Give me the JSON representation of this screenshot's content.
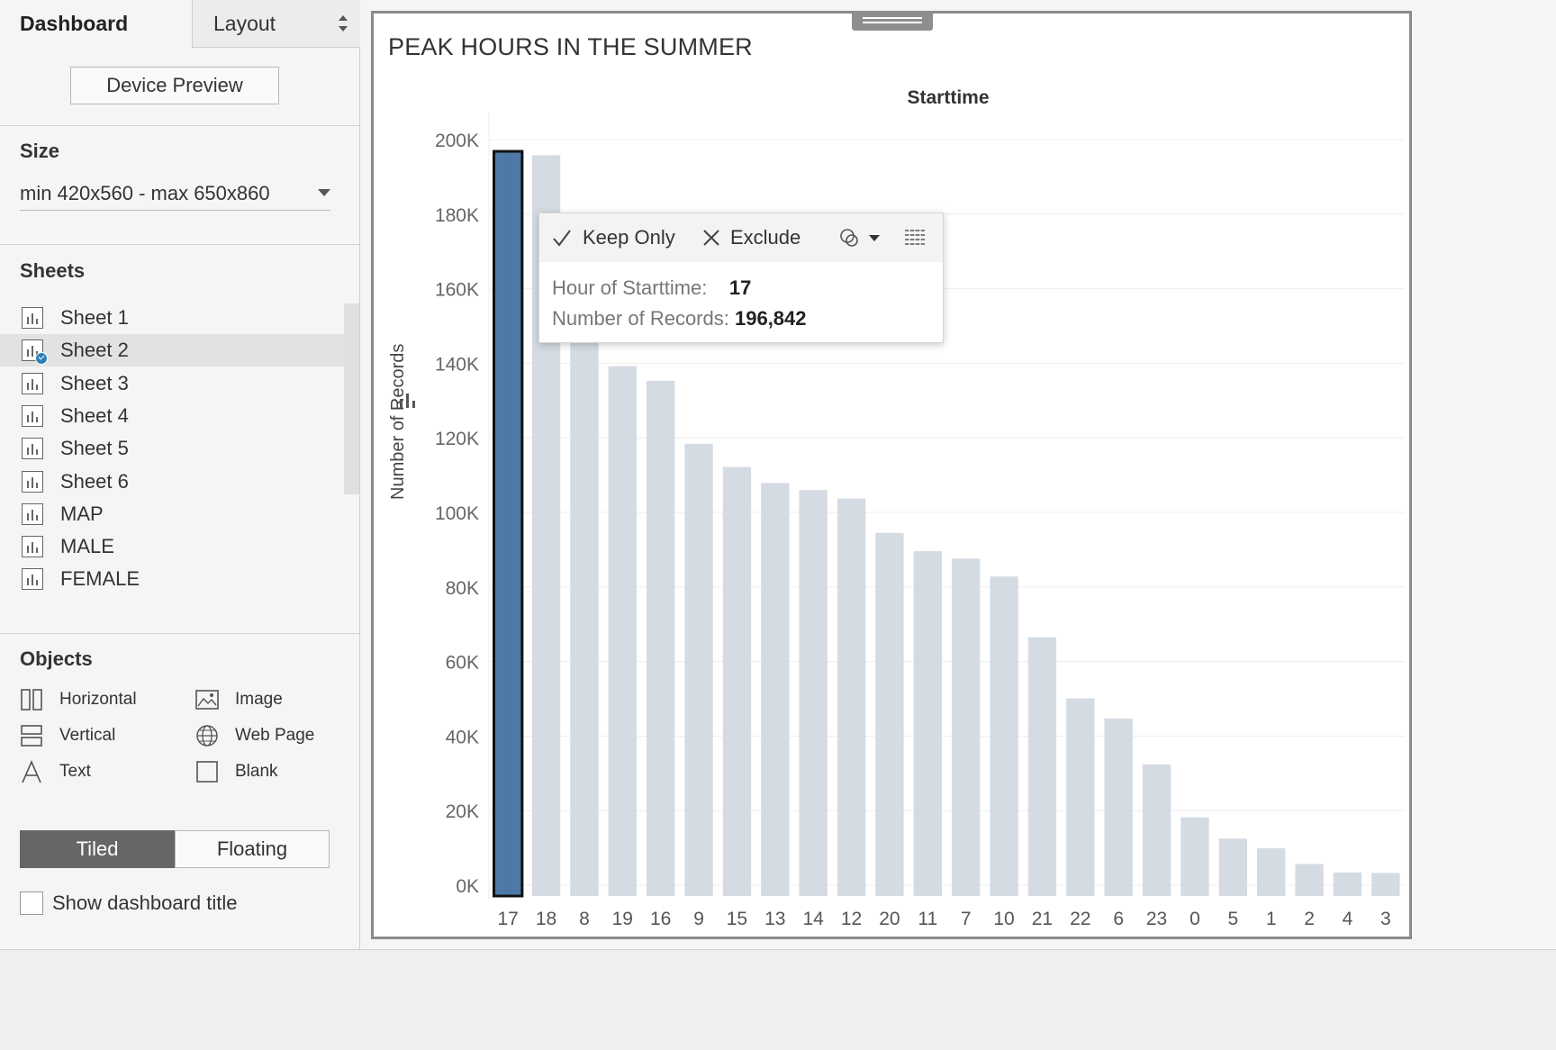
{
  "tabs": {
    "dashboard": "Dashboard",
    "layout": "Layout"
  },
  "device_preview_label": "Device Preview",
  "size": {
    "title": "Size",
    "value": "min 420x560 - max 650x860"
  },
  "sheets": {
    "title": "Sheets",
    "items": [
      "Sheet 1",
      "Sheet 2",
      "Sheet 3",
      "Sheet 4",
      "Sheet 5",
      "Sheet 6",
      "MAP",
      "MALE",
      "FEMALE"
    ],
    "selected": "Sheet 2"
  },
  "objects": {
    "title": "Objects",
    "horizontal": "Horizontal",
    "image": "Image",
    "vertical": "Vertical",
    "web_page": "Web Page",
    "text": "Text",
    "blank": "Blank"
  },
  "layout_mode": {
    "tiled": "Tiled",
    "floating": "Floating",
    "active": "Tiled"
  },
  "show_title": {
    "label": "Show dashboard title",
    "checked": false
  },
  "colors": {
    "highlight": "#4e79a7",
    "bar": "#d4dbe3",
    "tiled_bg": "#666666"
  },
  "tooltip": {
    "keep_only": "Keep Only",
    "exclude": "Exclude",
    "field1_label": "Hour of Starttime:",
    "field1_value": "17",
    "field2_label": "Number of Records:",
    "field2_value": "196,842"
  },
  "chart_data": {
    "type": "bar",
    "title": "PEAK HOURS IN THE SUMMER",
    "column_header": "Starttime",
    "ylabel": "Number of Records",
    "xlabel": "",
    "ylim": [
      0,
      200000
    ],
    "yticks": [
      "0K",
      "20K",
      "40K",
      "60K",
      "80K",
      "100K",
      "120K",
      "140K",
      "160K",
      "180K",
      "200K"
    ],
    "categories": [
      "17",
      "18",
      "8",
      "19",
      "16",
      "9",
      "15",
      "13",
      "14",
      "12",
      "20",
      "11",
      "7",
      "10",
      "21",
      "22",
      "6",
      "23",
      "0",
      "5",
      "1",
      "2",
      "4",
      "3"
    ],
    "values": [
      196842,
      195800,
      146000,
      139200,
      135300,
      118400,
      112200,
      107900,
      106000,
      103700,
      94500,
      89600,
      87600,
      82800,
      66500,
      50100,
      44700,
      32400,
      18200,
      12500,
      9900,
      5700,
      3400,
      3300
    ],
    "highlighted": "17",
    "grid": true
  }
}
